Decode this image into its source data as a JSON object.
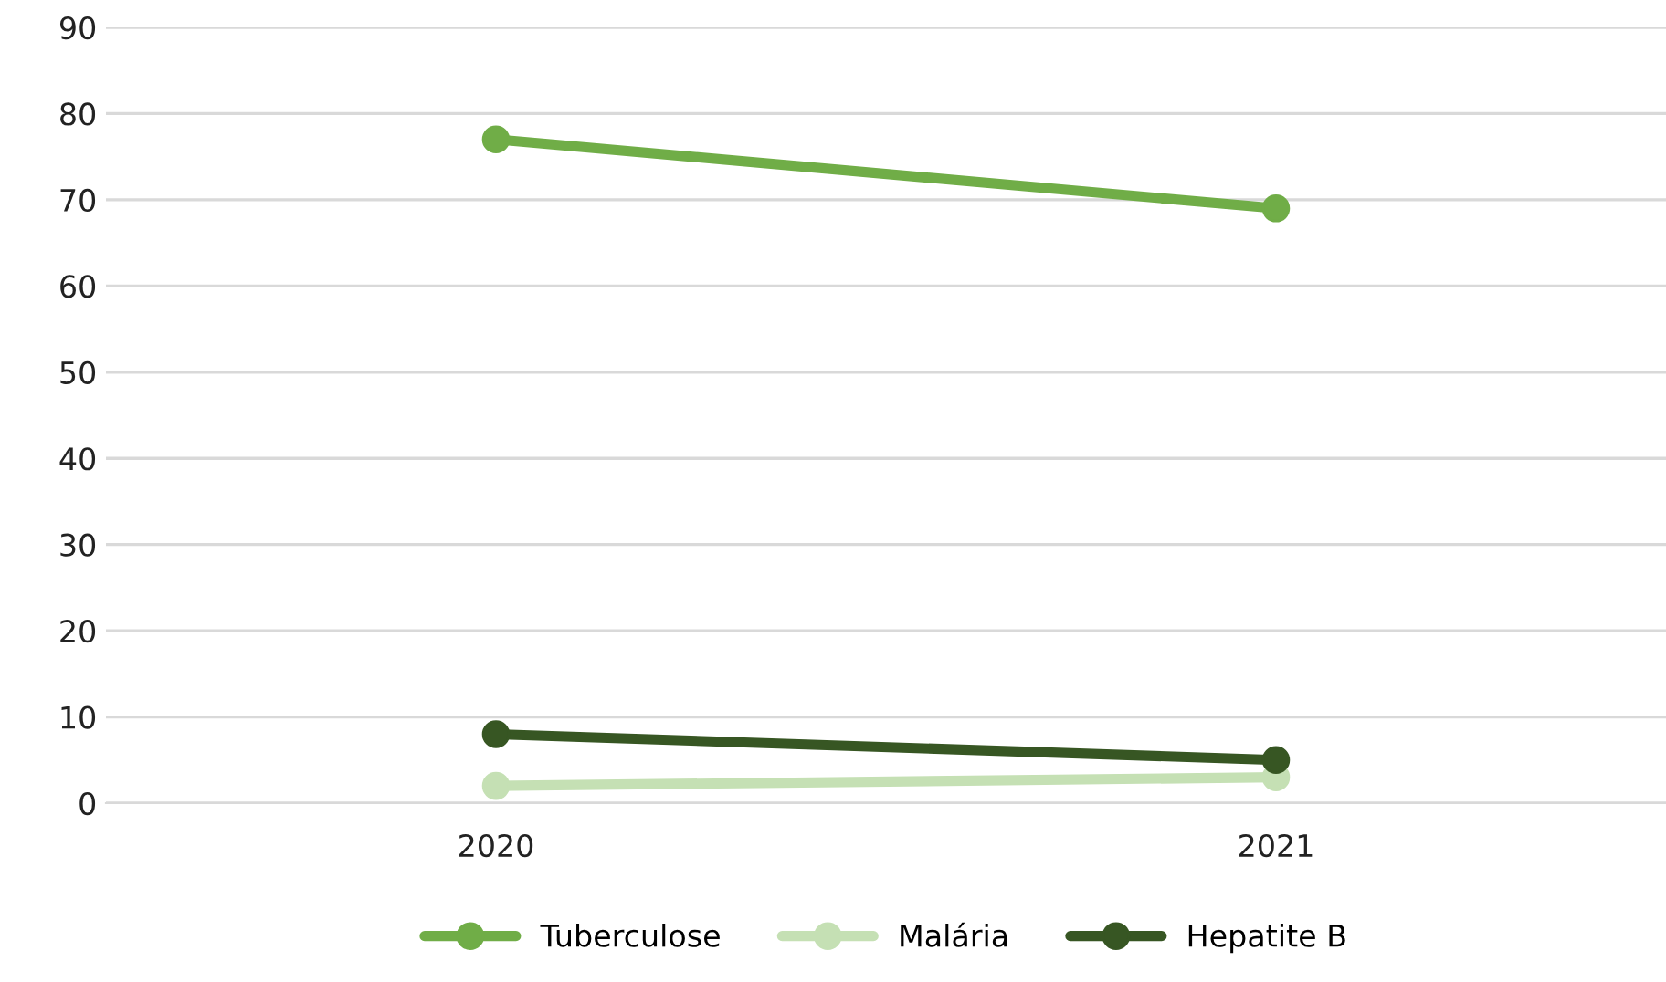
{
  "chart_data": {
    "type": "line",
    "categories": [
      "2020",
      "2021"
    ],
    "series": [
      {
        "name": "Tuberculose",
        "color": "#70ad47",
        "values": [
          77,
          69
        ]
      },
      {
        "name": "Malária",
        "color": "#c5e0b4",
        "values": [
          2,
          3
        ]
      },
      {
        "name": "Hepatite B",
        "color": "#375623",
        "values": [
          8,
          5
        ]
      }
    ],
    "ylim": [
      0,
      90
    ],
    "yticks": [
      0,
      10,
      20,
      30,
      40,
      50,
      60,
      70,
      80,
      90
    ],
    "grid": "y",
    "legend": "bottom",
    "marker": "circle",
    "line_style": "solid"
  }
}
